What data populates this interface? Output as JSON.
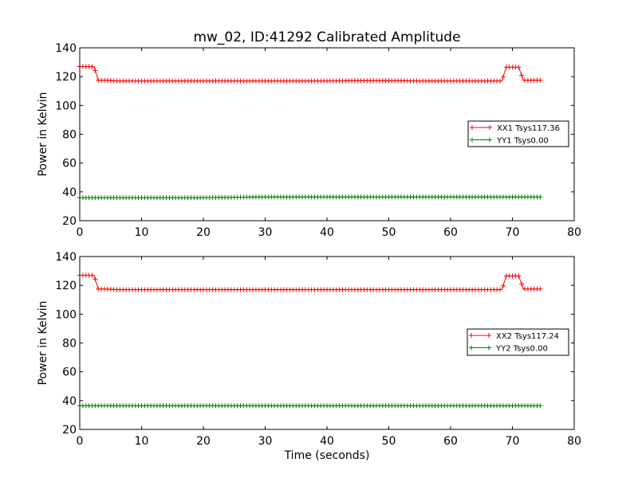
{
  "title": "mw_02, ID:41292 Calibrated Amplitude",
  "xlabel": "Time (seconds)",
  "colors": {
    "xx": "#ff0000",
    "yy": "#008000"
  },
  "chart_data": [
    {
      "type": "line",
      "ylabel": "Power in Kelvin",
      "xlim": [
        0,
        80
      ],
      "ylim": [
        20,
        140
      ],
      "xticks": [
        "0",
        "10",
        "20",
        "30",
        "40",
        "50",
        "60",
        "70",
        "80"
      ],
      "yticks": [
        "20",
        "40",
        "60",
        "80",
        "100",
        "120",
        "140"
      ],
      "legend_position": "center-right",
      "grid": false,
      "series": [
        {
          "name": "XX1 Tsys117.36",
          "color": "#ff0000",
          "marker": "+",
          "x": [
            0,
            2.3,
            3,
            4,
            6,
            8,
            10,
            15,
            20,
            25,
            30,
            35,
            40,
            45,
            50,
            55,
            60,
            65,
            68.3,
            69,
            70,
            71,
            71.8,
            74.5
          ],
          "y": [
            127,
            127,
            117.5,
            117.5,
            117,
            117,
            117,
            117,
            117,
            117,
            117,
            117,
            117,
            117.2,
            117.2,
            117,
            117,
            117,
            117,
            126.5,
            126.5,
            126.5,
            117.5,
            117.5
          ]
        },
        {
          "name": "YY1 Tsys0.00",
          "color": "#008000",
          "marker": "+",
          "x": [
            0,
            10,
            20,
            30,
            40,
            50,
            60,
            70,
            74.5
          ],
          "y": [
            36,
            36,
            36,
            36.5,
            36.5,
            36.5,
            36.5,
            36.5,
            36.5
          ]
        }
      ]
    },
    {
      "type": "line",
      "ylabel": "Power in Kelvin",
      "xlabel": "Time (seconds)",
      "xlim": [
        0,
        80
      ],
      "ylim": [
        20,
        140
      ],
      "xticks": [
        "0",
        "10",
        "20",
        "30",
        "40",
        "50",
        "60",
        "70",
        "80"
      ],
      "yticks": [
        "20",
        "40",
        "60",
        "80",
        "100",
        "120",
        "140"
      ],
      "legend_position": "center-right",
      "grid": false,
      "series": [
        {
          "name": "XX2 Tsys117.24",
          "color": "#ff0000",
          "marker": "+",
          "x": [
            0,
            2.3,
            3,
            4,
            6,
            8,
            10,
            15,
            20,
            25,
            30,
            35,
            40,
            45,
            50,
            55,
            60,
            65,
            68.3,
            69,
            70,
            71,
            71.8,
            74.5
          ],
          "y": [
            127,
            127,
            117.5,
            117.5,
            117,
            117,
            117,
            117,
            117,
            117,
            117,
            117,
            117,
            117,
            117,
            117,
            117,
            117,
            117,
            126.5,
            126.5,
            126.5,
            117.5,
            117.5
          ]
        },
        {
          "name": "YY2 Tsys0.00",
          "color": "#008000",
          "marker": "+",
          "x": [
            0,
            10,
            20,
            30,
            40,
            50,
            60,
            70,
            74.5
          ],
          "y": [
            36.5,
            36.5,
            36.5,
            36.5,
            36.5,
            36.5,
            36.5,
            36.5,
            36.5
          ]
        }
      ]
    }
  ]
}
